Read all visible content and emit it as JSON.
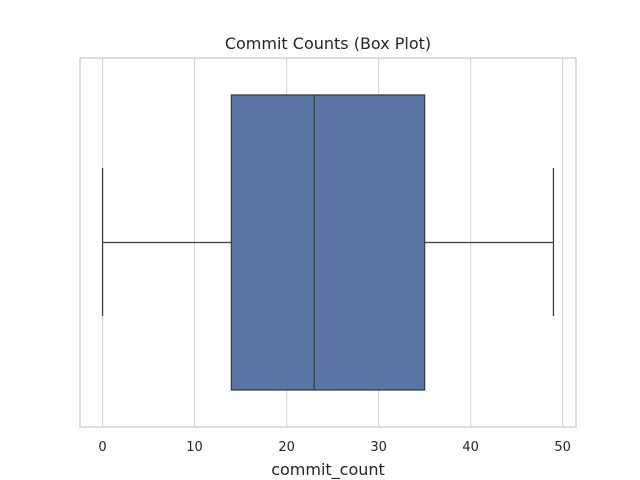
{
  "chart_data": {
    "type": "box",
    "title": "Commit Counts (Box Plot)",
    "xlabel": "commit_count",
    "ylabel": "",
    "orientation": "horizontal",
    "xlim": [
      -2.45,
      51.45
    ],
    "xticks": [
      0,
      10,
      20,
      30,
      40,
      50
    ],
    "grid": true,
    "series": [
      {
        "values": {
          "whisker_low": 0,
          "q1": 14,
          "median": 23,
          "q3": 35,
          "whisker_high": 49
        }
      }
    ]
  },
  "colors": {
    "box_fill": "#5875a4",
    "line": "#3d3d3d",
    "grid": "#d4d4d4",
    "frame": "#cccccc",
    "text": "#262626"
  }
}
